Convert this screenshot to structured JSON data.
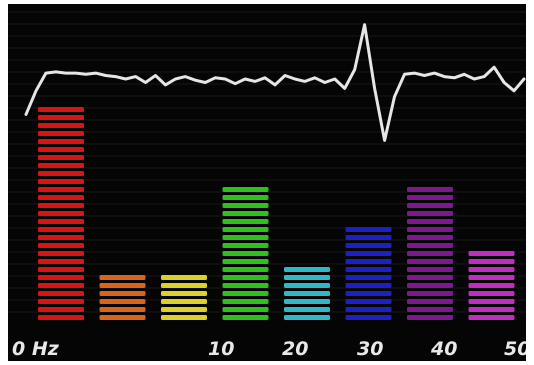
{
  "chart_data": {
    "type": "bar",
    "title": "",
    "xlabel": "",
    "ylabel": "",
    "x_tick_labels": [
      "0 Hz",
      "10",
      "20",
      "30",
      "40",
      "50"
    ],
    "ylim": [
      0,
      100
    ],
    "bars": [
      {
        "color": "#d61616",
        "value": 100
      },
      {
        "color": "#d7651a",
        "value": 22
      },
      {
        "color": "#dcd02a",
        "value": 22
      },
      {
        "color": "#2fbf1f",
        "value": 63
      },
      {
        "color": "#2fb9c6",
        "value": 27
      },
      {
        "color": "#1f1fc2",
        "value": 46
      },
      {
        "color": "#7a1a8c",
        "value": 63
      },
      {
        "color": "#bf2fbf",
        "value": 35
      }
    ],
    "signal_trace": {
      "color": "#e6e6e6",
      "x": [
        0,
        1,
        2,
        3,
        4,
        5,
        6,
        7,
        8,
        9,
        10,
        11,
        12,
        13,
        14,
        15,
        16,
        17,
        18,
        19,
        20,
        21,
        22,
        23,
        24,
        25,
        26,
        27,
        28,
        29,
        30,
        31,
        32,
        33,
        34,
        35,
        36,
        37,
        38,
        39,
        40,
        41,
        42,
        43,
        44,
        45,
        46,
        47,
        48,
        49,
        50
      ],
      "y": [
        20,
        40,
        55,
        56,
        55,
        55,
        54,
        55,
        53,
        52,
        50,
        52,
        47,
        53,
        45,
        50,
        52,
        49,
        47,
        51,
        50,
        46,
        50,
        48,
        51,
        45,
        53,
        50,
        48,
        51,
        47,
        50,
        42,
        58,
        96,
        42,
        -2,
        35,
        54,
        55,
        53,
        55,
        52,
        51,
        54,
        50,
        52,
        60,
        47,
        40,
        50
      ]
    },
    "grid": false
  },
  "colors": {
    "background": "#050505",
    "frame": "#ffffff",
    "tick_text": "#e8e8e8"
  }
}
